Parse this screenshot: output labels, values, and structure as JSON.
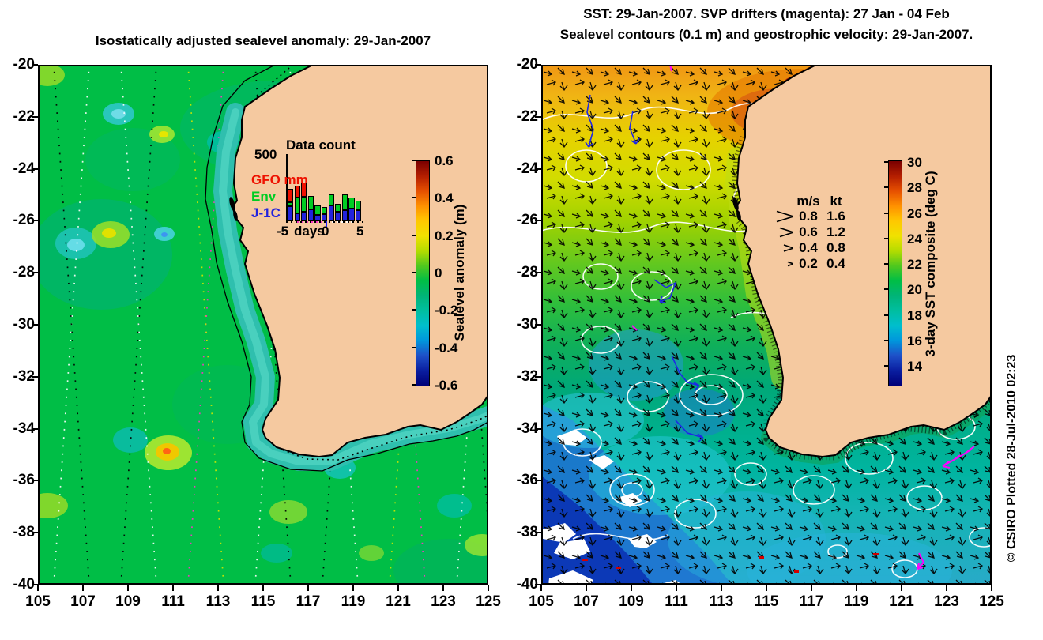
{
  "page": {
    "background": "#ffffff"
  },
  "colors": {
    "land": "#F5C9A0",
    "coast_line": "#000000",
    "ocean_green": "#00BE46",
    "coastal_band": "#2FBFAE",
    "contour_white": "#FFFFFF",
    "arrow_black": "#000000",
    "drifter_magenta": "#FF00FF",
    "drifter_blue": "#1E28E6",
    "legend_gfo_red": "#EE1100",
    "legend_env_green": "#00CC22",
    "legend_j1c_blue": "#2222DD"
  },
  "left_panel": {
    "title": "Isostatically adjusted sealevel anomaly: 29-Jan-2007",
    "x_ticks": [
      "105",
      "107",
      "109",
      "111",
      "113",
      "115",
      "117",
      "119",
      "121",
      "123",
      "125"
    ],
    "y_ticks": [
      "-20",
      "-22",
      "-24",
      "-26",
      "-28",
      "-30",
      "-32",
      "-34",
      "-36",
      "-38",
      "-40"
    ],
    "colorbar": {
      "label": "Sealevel anomaly (m)",
      "ticks": [
        "0.6",
        "0.4",
        "0.2",
        "0",
        "-0.2",
        "-0.4",
        "-0.6"
      ],
      "gradient": [
        "#7A0000",
        "#B41E00",
        "#E65000",
        "#FF9100",
        "#FFC800",
        "#F0E100",
        "#B4DC00",
        "#50C81E",
        "#00BE46",
        "#00B478",
        "#00BEA0",
        "#00BECD",
        "#0096DC",
        "#1E50C8",
        "#0A1EA0",
        "#000078"
      ]
    },
    "inset": {
      "title": "Data count",
      "y_max_label": "500",
      "legend": [
        {
          "label": "GFO mm",
          "color": "#EE1100"
        },
        {
          "label": "Env",
          "color": "#00CC22"
        },
        {
          "label": "J-1C",
          "color": "#2222DD"
        }
      ],
      "x_labels": [
        "-5",
        "days",
        "0",
        "5"
      ]
    }
  },
  "right_panel": {
    "title_line1": "SST: 29-Jan-2007. SVP drifters (magenta): 27 Jan - 04 Feb",
    "title_line2": "Sealevel contours (0.1 m) and geostrophic velocity: 29-Jan-2007.",
    "x_ticks": [
      "105",
      "107",
      "109",
      "111",
      "113",
      "115",
      "117",
      "119",
      "121",
      "123",
      "125"
    ],
    "y_ticks": [
      "-20",
      "-22",
      "-24",
      "-26",
      "-28",
      "-30",
      "-32",
      "-34",
      "-36",
      "-38",
      "-40"
    ],
    "colorbar": {
      "label": "3-day SST composite (deg C)",
      "ticks": [
        "30",
        "28",
        "26",
        "24",
        "22",
        "20",
        "18",
        "16",
        "14"
      ],
      "gradient": [
        "#7A0000",
        "#B41E00",
        "#E65000",
        "#FF9100",
        "#FFC800",
        "#F0E100",
        "#B4DC00",
        "#50C81E",
        "#00BE46",
        "#00B478",
        "#00BEA0",
        "#00BECD",
        "#0096DC",
        "#1E50C8",
        "#0A1EA0",
        "#000078"
      ]
    },
    "velocity_legend": {
      "col1": "m/s",
      "col2": "kt",
      "rows": [
        {
          "ms": "0.8",
          "kt": "1.6"
        },
        {
          "ms": "0.6",
          "kt": "1.2"
        },
        {
          "ms": "0.4",
          "kt": "0.8"
        },
        {
          "ms": "0.2",
          "kt": "0.4"
        }
      ]
    }
  },
  "credit": "© CSIRO Plotted 28-Jul-2010 02:23",
  "chart_data": [
    {
      "type": "heatmap",
      "title": "Isostatically adjusted sealevel anomaly: 29-Jan-2007",
      "xlabel": "",
      "ylabel": "",
      "x_range": [
        105,
        125
      ],
      "y_range": [
        -40,
        -20
      ],
      "x_tick_step": 2,
      "y_tick_step": 2,
      "colorbar_label": "Sealevel anomaly (m)",
      "colorbar_range": [
        -0.6,
        0.6
      ],
      "colorbar_ticks": [
        0.6,
        0.4,
        0.2,
        0,
        -0.2,
        -0.4,
        -0.6
      ],
      "notes": "Sea level anomaly field off Western Australia; mostly near 0 m (green) with cyan lows near (107,-29), (110.6,-26.5), (117,-24) and warm highs near (110.7,-35.9) up to ~+0.3 m; satellite ground tracks shown as dotted lines; land masked tan"
    },
    {
      "type": "heatmap",
      "title": "SST: 29-Jan-2007. SVP drifters (magenta): 27 Jan - 04 Feb Sealevel contours (0.1 m) and geostrophic velocity: 29-Jan-2007.",
      "xlabel": "",
      "ylabel": "",
      "x_range": [
        105,
        125
      ],
      "y_range": [
        -40,
        -20
      ],
      "x_tick_step": 2,
      "y_tick_step": 2,
      "colorbar_label": "3-day SST composite (deg C)",
      "colorbar_range": [
        12.5,
        30
      ],
      "colorbar_ticks": [
        30,
        28,
        26,
        24,
        22,
        20,
        18,
        16,
        14
      ],
      "velocity_legend_ms": [
        0.8,
        0.6,
        0.4,
        0.2
      ],
      "velocity_legend_kt": [
        1.6,
        1.2,
        0.8,
        0.4
      ],
      "notes": "SST ~29-30 C dark red along NW coast at -20 to -22, orange/yellow 24-26 C mid, green 20-22 C, blue 13-16 C in SW with white cloud gaps; white 0.1 m sealevel contours; black geostrophic velocity arrows; magenta SVP drifter tracks near (123,-37.5) and (122,-41)"
    },
    {
      "type": "bar",
      "stacked": true,
      "title": "Data count",
      "xlabel": "days",
      "ylabel": "",
      "categories": [
        -5,
        -4,
        -3,
        -2,
        -1,
        0,
        1,
        2,
        3,
        4,
        5
      ],
      "series": [
        {
          "name": "J-1C",
          "color": "#2222DD",
          "values": [
            110,
            60,
            70,
            90,
            45,
            55,
            115,
            70,
            85,
            95,
            80
          ]
        },
        {
          "name": "Env",
          "color": "#00CC22",
          "values": [
            30,
            120,
            110,
            100,
            70,
            55,
            80,
            60,
            115,
            85,
            70
          ]
        },
        {
          "name": "GFO",
          "color": "#EE1100",
          "values": [
            100,
            90,
            105,
            0,
            0,
            0,
            0,
            0,
            0,
            0,
            0
          ]
        }
      ],
      "ylim": [
        0,
        500
      ],
      "xlim": [
        -5,
        5
      ]
    }
  ]
}
